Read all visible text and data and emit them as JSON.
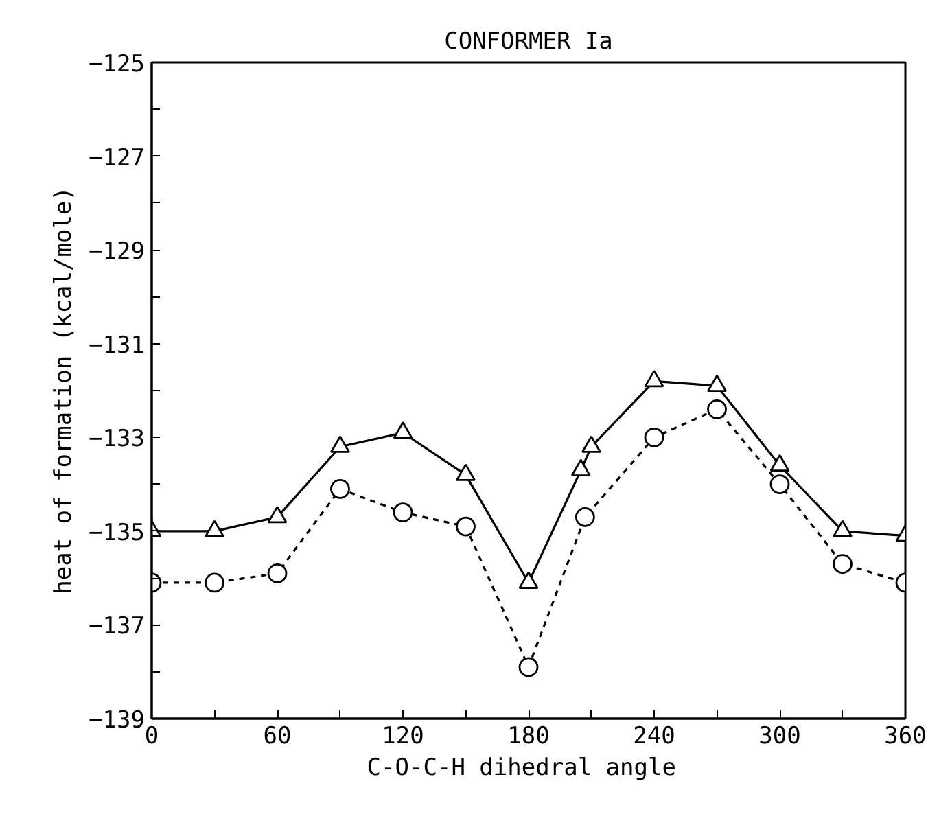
{
  "chart_data": {
    "type": "line",
    "title": "CONFORMER Ia",
    "xlabel": "C-O-C-H  dihedral angle",
    "ylabel": "heat of formation (kcal/mole)",
    "xlim": [
      0,
      360
    ],
    "ylim": [
      -139,
      -125
    ],
    "xticks": [
      0,
      {
        "value": 30,
        "label": null
      },
      60,
      {
        "value": 90,
        "label": null
      },
      120,
      {
        "value": 150,
        "label": null
      },
      180,
      {
        "value": 210,
        "label": null
      },
      240,
      {
        "value": 270,
        "label": null
      },
      300,
      {
        "value": 330,
        "label": null
      },
      360
    ],
    "yticks": [
      -139,
      {
        "value": -138,
        "label": null
      },
      -137,
      {
        "value": -136,
        "label": null
      },
      -135,
      {
        "value": -134,
        "label": null
      },
      -133,
      {
        "value": -132,
        "label": null
      },
      -131,
      {
        "value": -130,
        "label": null
      },
      -129,
      {
        "value": -128,
        "label": null
      },
      -127,
      {
        "value": -126,
        "label": null
      },
      -125
    ],
    "grid": false,
    "series": [
      {
        "color": "#000000",
        "marker": "triangle",
        "line_style": "solid",
        "x": [
          0,
          30,
          60,
          90,
          120,
          150,
          180,
          205,
          210,
          240,
          270,
          300,
          330,
          360
        ],
        "values": [
          -135.0,
          -135.0,
          -134.7,
          -133.2,
          -132.9,
          -133.8,
          -136.1,
          -133.7,
          -133.2,
          -131.8,
          -131.9,
          -133.6,
          -135.0,
          -135.1
        ]
      },
      {
        "color": "#000000",
        "marker": "circle",
        "line_style": "dashed",
        "x": [
          0,
          30,
          60,
          90,
          120,
          150,
          180,
          207,
          240,
          270,
          300,
          330,
          360
        ],
        "values": [
          -136.1,
          -136.1,
          -135.9,
          -134.1,
          -134.6,
          -134.9,
          -137.9,
          -134.7,
          -133.0,
          -132.4,
          -134.0,
          -135.7,
          -136.1
        ]
      }
    ]
  }
}
